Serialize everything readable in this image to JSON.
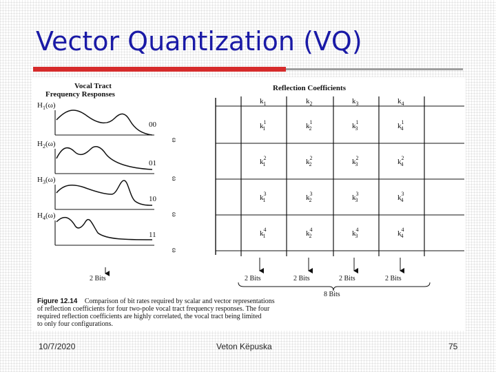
{
  "slide": {
    "title": "Vector Quantization (VQ)",
    "footer": {
      "date": "10/7/2020",
      "author": "Veton Këpuska",
      "page": "75"
    }
  },
  "figure": {
    "left_heading_line1": "Vocal Tract",
    "left_heading_line2": "Frequency Responses",
    "right_heading": "Reflection Coefficients",
    "responses": [
      {
        "label": "H",
        "sub": "1",
        "arg": "(ω)",
        "code": "00"
      },
      {
        "label": "H",
        "sub": "2",
        "arg": "(ω)",
        "code": "01"
      },
      {
        "label": "H",
        "sub": "3",
        "arg": "(ω)",
        "code": "10"
      },
      {
        "label": "H",
        "sub": "4",
        "arg": "(ω)",
        "code": "11"
      }
    ],
    "omega_label": "ω",
    "column_headers": [
      {
        "base": "k",
        "sub": "1"
      },
      {
        "base": "k",
        "sub": "2"
      },
      {
        "base": "k",
        "sub": "3"
      },
      {
        "base": "k",
        "sub": "4"
      }
    ],
    "coefficient_rows": [
      [
        {
          "sup": "1",
          "sub": "1"
        },
        {
          "sup": "1",
          "sub": "2"
        },
        {
          "sup": "1",
          "sub": "3"
        },
        {
          "sup": "1",
          "sub": "4"
        }
      ],
      [
        {
          "sup": "2",
          "sub": "1"
        },
        {
          "sup": "2",
          "sub": "2"
        },
        {
          "sup": "2",
          "sub": "3"
        },
        {
          "sup": "2",
          "sub": "4"
        }
      ],
      [
        {
          "sup": "3",
          "sub": "1"
        },
        {
          "sup": "3",
          "sub": "2"
        },
        {
          "sup": "3",
          "sub": "3"
        },
        {
          "sup": "3",
          "sub": "4"
        }
      ],
      [
        {
          "sup": "4",
          "sub": "1"
        },
        {
          "sup": "4",
          "sub": "2"
        },
        {
          "sup": "4",
          "sub": "3"
        },
        {
          "sup": "4",
          "sub": "4"
        }
      ]
    ],
    "left_bits_label": "2 Bits",
    "column_bits_labels": [
      "2 Bits",
      "2 Bits",
      "2 Bits",
      "2 Bits"
    ],
    "total_bits_label": "8 Bits",
    "caption_label": "Figure 12.14",
    "caption_line1": "Comparison of bit rates required by scalar and vector representations",
    "caption_line2": "of reflection coefficients for four two-pole vocal tract frequency responses. The four",
    "caption_line3": "required reflection coefficients are highly correlated, the vocal tract being limited",
    "caption_line4": "to only four configurations."
  }
}
